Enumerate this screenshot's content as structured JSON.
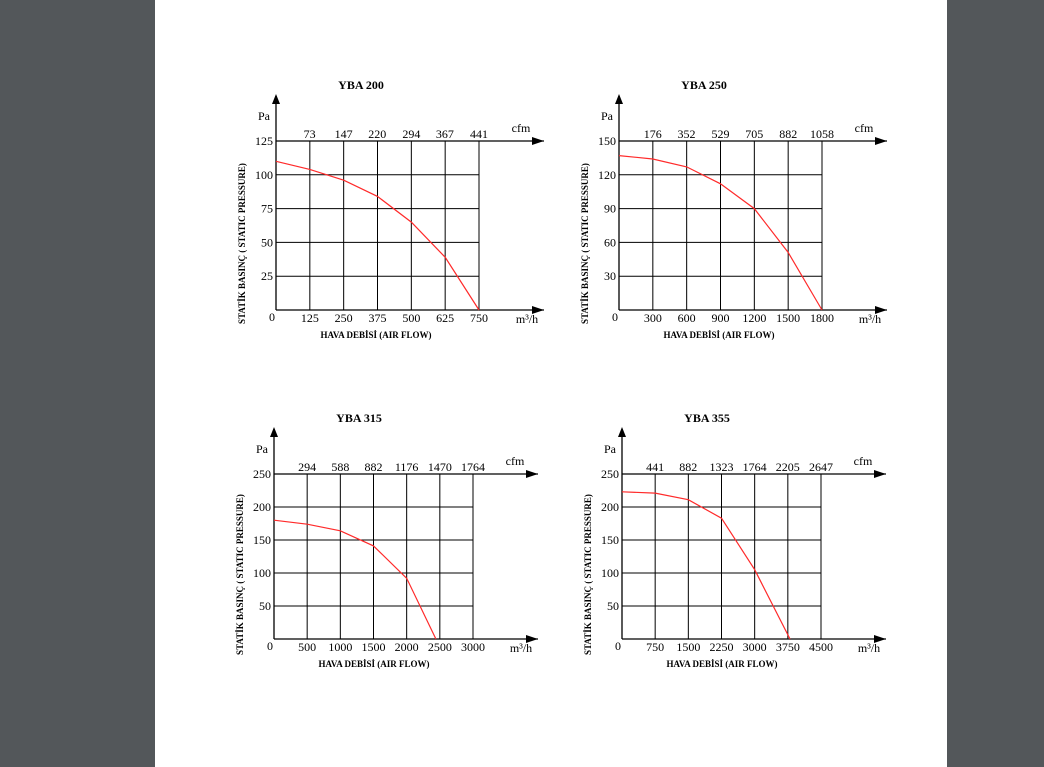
{
  "chart_data": [
    {
      "type": "line",
      "title": "YBA 200",
      "ylabel": "STATİK BASINÇ ( STATIC PRESSURE)",
      "xlabel": "HAVA DEBİSİ (AIR FLOW)",
      "yunit": "Pa",
      "xunit": "m³/h",
      "x2unit": "cfm",
      "x": [
        0,
        125,
        250,
        375,
        500,
        625,
        750
      ],
      "values": [
        110,
        104,
        96,
        84,
        65,
        39,
        0
      ],
      "color": "#ff2a2a",
      "xlim": [
        0,
        750
      ],
      "xticks": [
        125,
        250,
        375,
        500,
        625,
        750
      ],
      "ylim": [
        0,
        125
      ],
      "yticks": [
        0,
        25,
        50,
        75,
        100,
        125
      ],
      "x2lim": [
        0,
        441
      ],
      "x2ticks": [
        73,
        147,
        220,
        294,
        367,
        441
      ],
      "grid": true
    },
    {
      "type": "line",
      "title": "YBA 250",
      "ylabel": "STATİK BASINÇ ( STATIC PRESSURE)",
      "xlabel": "HAVA DEBİSİ (AIR FLOW)",
      "yunit": "Pa",
      "xunit": "m³/h",
      "x2unit": "cfm",
      "x": [
        0,
        300,
        600,
        900,
        1200,
        1500,
        1800
      ],
      "values": [
        137,
        134,
        127,
        112,
        90,
        51,
        0
      ],
      "color": "#ff2a2a",
      "xlim": [
        0,
        1800
      ],
      "xticks": [
        300,
        600,
        900,
        1200,
        1500,
        1800
      ],
      "ylim": [
        0,
        150
      ],
      "yticks": [
        0,
        30,
        60,
        90,
        120,
        150
      ],
      "x2lim": [
        0,
        1058
      ],
      "x2ticks": [
        176,
        352,
        529,
        705,
        882,
        1058
      ],
      "grid": true
    },
    {
      "type": "line",
      "title": "YBA 315",
      "ylabel": "STATİK BASINÇ ( STATIC PRESSURE)",
      "xlabel": "HAVA DEBİSİ (AIR FLOW)",
      "yunit": "Pa",
      "xunit": "m³/h",
      "x2unit": "cfm",
      "x": [
        0,
        500,
        1000,
        1500,
        2000,
        2440
      ],
      "values": [
        180,
        174,
        164,
        141,
        92,
        0
      ],
      "color": "#ff2a2a",
      "xlim": [
        0,
        3000
      ],
      "xticks": [
        500,
        1000,
        1500,
        2000,
        2500,
        3000
      ],
      "ylim": [
        0,
        250
      ],
      "yticks": [
        0,
        50,
        100,
        150,
        200,
        250
      ],
      "x2lim": [
        0,
        1764
      ],
      "x2ticks": [
        294,
        588,
        882,
        1176,
        1470,
        1764
      ],
      "grid": true
    },
    {
      "type": "line",
      "title": "YBA 355",
      "ylabel": "STATİK BASINÇ ( STATIC PRESSURE)",
      "xlabel": "HAVA DEBİSİ (AIR FLOW)",
      "yunit": "Pa",
      "xunit": "m³/h",
      "x2unit": "cfm",
      "x": [
        0,
        750,
        1500,
        2250,
        3000,
        3800
      ],
      "values": [
        223,
        221,
        211,
        183,
        105,
        0
      ],
      "color": "#ff2a2a",
      "xlim": [
        0,
        4500
      ],
      "xticks": [
        750,
        1500,
        2250,
        3000,
        3750,
        4500
      ],
      "ylim": [
        0,
        250
      ],
      "yticks": [
        0,
        50,
        100,
        150,
        200,
        250
      ],
      "x2lim": [
        0,
        2647
      ],
      "x2ticks": [
        441,
        882,
        1323,
        1764,
        2205,
        2647
      ],
      "grid": true
    }
  ]
}
